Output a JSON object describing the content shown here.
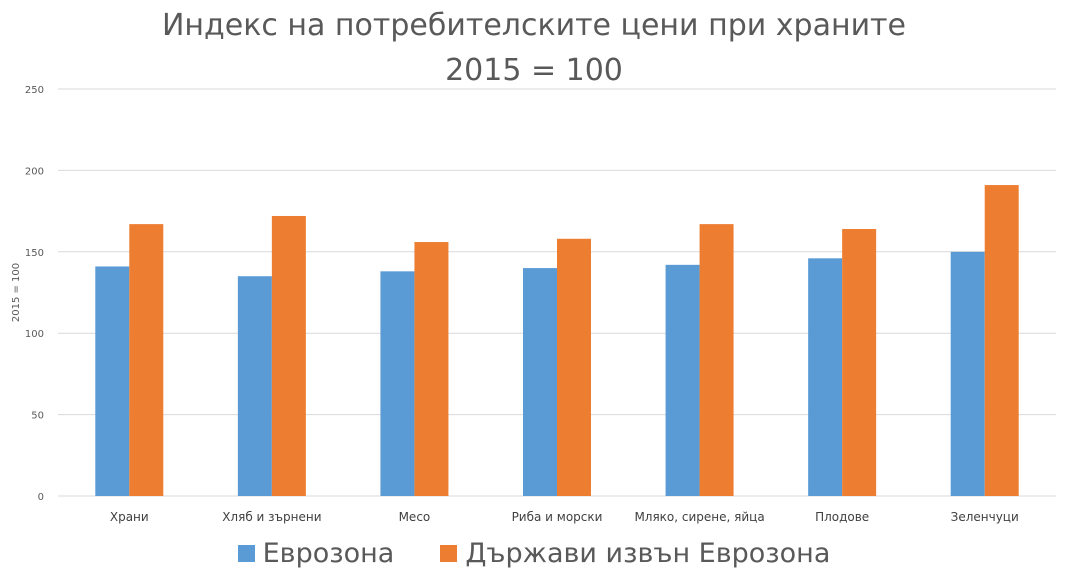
{
  "chart_data": {
    "type": "bar",
    "title": "Индекс на потребителските цени при храните",
    "subtitle": "2015 = 100",
    "ylabel": "2015 = 100",
    "xlabel": "",
    "ylim": [
      0,
      250
    ],
    "yticks": [
      0,
      50,
      100,
      150,
      200,
      250
    ],
    "grid": true,
    "legend_position": "bottom",
    "categories": [
      "Храни",
      "Хляб и зърнени",
      "Месо",
      "Риба и морски",
      "Мляко, сирене, яйца",
      "Плодове",
      "Зеленчуци"
    ],
    "series": [
      {
        "name": "Еврозона",
        "color": "#5B9BD5",
        "values": [
          141,
          135,
          138,
          140,
          142,
          146,
          150
        ]
      },
      {
        "name": "Държави извън Еврозона",
        "color": "#ED7D31",
        "values": [
          167,
          172,
          156,
          158,
          167,
          164,
          191
        ]
      }
    ]
  }
}
